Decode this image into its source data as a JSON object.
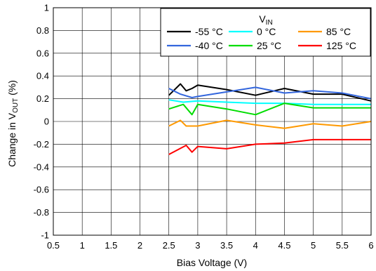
{
  "chart_data": {
    "type": "line",
    "xlabel": "Bias Voltage (V)",
    "ylabel": {
      "prefix": "Change in V",
      "sub": "OUT",
      "suffix": " (%)"
    },
    "xlim": [
      0.5,
      6
    ],
    "ylim": [
      -1,
      1
    ],
    "xticks": [
      0.5,
      1,
      1.5,
      2,
      2.5,
      3,
      3.5,
      4,
      4.5,
      5,
      5.5,
      6
    ],
    "xtick_labels": [
      "0.5",
      "1",
      "1.5",
      "2",
      "2.5",
      "3",
      "3.5",
      "4",
      "4.5",
      "5",
      "5.5",
      "6"
    ],
    "yticks": [
      1,
      0.8,
      0.6,
      0.4,
      0.2,
      0,
      -0.2,
      -0.4,
      -0.6,
      -0.8,
      -1
    ],
    "ytick_labels": [
      "1",
      "0.8",
      "0.6",
      "0.4",
      "0.2",
      "0",
      "-0.2",
      "-0.4",
      "-0.6",
      "-0.8",
      "-1"
    ],
    "grid": true,
    "legend": {
      "title_main": "V",
      "title_sub": "IN",
      "placement": "top-right"
    },
    "series": [
      {
        "name": "-55 °C",
        "color": "#000000",
        "x": [
          2.5,
          2.6,
          2.7,
          2.8,
          2.9,
          3.0,
          3.5,
          4.0,
          4.5,
          5.0,
          5.5,
          6.0
        ],
        "y": [
          0.23,
          0.28,
          0.33,
          0.27,
          0.29,
          0.32,
          0.28,
          0.23,
          0.29,
          0.24,
          0.24,
          0.18
        ]
      },
      {
        "name": "0 °C",
        "color": "#00FFFF",
        "x": [
          2.5,
          2.75,
          3.0,
          3.5,
          4.0,
          4.5,
          5.0,
          5.5,
          6.0
        ],
        "y": [
          0.19,
          0.17,
          0.18,
          0.17,
          0.16,
          0.16,
          0.15,
          0.15,
          0.15
        ]
      },
      {
        "name": "85 °C",
        "color": "#FF9900",
        "x": [
          2.5,
          2.7,
          2.8,
          3.0,
          3.5,
          4.0,
          4.5,
          5.0,
          5.5,
          6.0
        ],
        "y": [
          -0.04,
          0.01,
          -0.04,
          -0.04,
          0.01,
          -0.03,
          -0.06,
          -0.02,
          -0.04,
          0.0
        ]
      },
      {
        "name": "-40 °C",
        "color": "#3366DD",
        "x": [
          2.5,
          2.7,
          2.9,
          3.0,
          3.5,
          4.0,
          4.5,
          5.0,
          5.5,
          6.0
        ],
        "y": [
          0.29,
          0.24,
          0.21,
          0.22,
          0.26,
          0.3,
          0.25,
          0.27,
          0.25,
          0.2
        ]
      },
      {
        "name": "25 °C",
        "color": "#00DD00",
        "x": [
          2.5,
          2.75,
          2.9,
          3.0,
          3.5,
          4.0,
          4.5,
          5.0,
          5.5,
          6.0
        ],
        "y": [
          0.11,
          0.15,
          0.06,
          0.15,
          0.11,
          0.06,
          0.16,
          0.12,
          0.12,
          0.12
        ]
      },
      {
        "name": "125 °C",
        "color": "#FF0000",
        "x": [
          2.5,
          2.8,
          2.9,
          3.0,
          3.5,
          4.0,
          4.5,
          5.0,
          5.5,
          6.0
        ],
        "y": [
          -0.29,
          -0.21,
          -0.27,
          -0.22,
          -0.24,
          -0.2,
          -0.19,
          -0.16,
          -0.16,
          -0.16
        ]
      }
    ]
  }
}
